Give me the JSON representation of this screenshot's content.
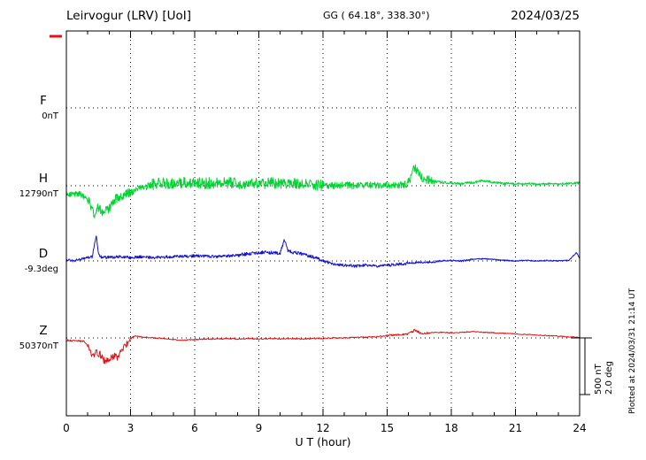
{
  "header": {
    "title": "Leirvogur (LRV)  [UoI]",
    "coords": "GG ( 64.18°, 338.30°)",
    "date": "2024/03/25"
  },
  "side": {
    "plotted_at": "Plotted at 2024/03/31 21:14 UT"
  },
  "chart_data": {
    "type": "line",
    "title": "Leirvogur (LRV) [UoI] magnetogram",
    "xlabel": "U T (hour)",
    "xlim": [
      0,
      24
    ],
    "x_ticks": [
      0,
      3,
      6,
      9,
      12,
      15,
      18,
      21,
      24
    ],
    "grid": "dotted vertical at 3h intervals, dotted horizontal at each trace baseline",
    "scale_bar": {
      "nT": "500 nT",
      "deg": "2.0 deg"
    },
    "series": [
      {
        "name": "F",
        "color": "#ffa500",
        "unit": "nT",
        "baseline_label": "0nT",
        "baseline_value": 0,
        "points": [],
        "noise": []
      },
      {
        "name": "H",
        "color": "#00d432",
        "unit": "nT",
        "baseline_label": "12790nT",
        "baseline_value": 12790,
        "points": [
          [
            0,
            -60
          ],
          [
            0.3,
            -80
          ],
          [
            0.6,
            -70
          ],
          [
            0.9,
            -100
          ],
          [
            1.1,
            -150
          ],
          [
            1.3,
            -260
          ],
          [
            1.5,
            -180
          ],
          [
            1.7,
            -230
          ],
          [
            2,
            -210
          ],
          [
            2.3,
            -120
          ],
          [
            2.6,
            -90
          ],
          [
            3,
            -60
          ],
          [
            3.3,
            -30
          ],
          [
            3.6,
            -20
          ],
          [
            4,
            10
          ],
          [
            4.5,
            25
          ],
          [
            5,
            20
          ],
          [
            5.5,
            30
          ],
          [
            6,
            25
          ],
          [
            6.5,
            20
          ],
          [
            7,
            30
          ],
          [
            7.5,
            25
          ],
          [
            8,
            20
          ],
          [
            8.5,
            25
          ],
          [
            9,
            20
          ],
          [
            9.5,
            25
          ],
          [
            10,
            20
          ],
          [
            10.5,
            15
          ],
          [
            11,
            20
          ],
          [
            11.5,
            10
          ],
          [
            12,
            5
          ],
          [
            12.5,
            0
          ],
          [
            13,
            5
          ],
          [
            13.5,
            0
          ],
          [
            14,
            5
          ],
          [
            14.5,
            0
          ],
          [
            15,
            10
          ],
          [
            15.5,
            5
          ],
          [
            16,
            30
          ],
          [
            16.3,
            170
          ],
          [
            16.5,
            90
          ],
          [
            16.8,
            60
          ],
          [
            17,
            50
          ],
          [
            17.5,
            30
          ],
          [
            18,
            25
          ],
          [
            18.5,
            20
          ],
          [
            19,
            30
          ],
          [
            19.5,
            45
          ],
          [
            20,
            30
          ],
          [
            20.5,
            20
          ],
          [
            21,
            15
          ],
          [
            21.5,
            20
          ],
          [
            22,
            15
          ],
          [
            22.5,
            20
          ],
          [
            23,
            15
          ],
          [
            23.5,
            20
          ],
          [
            24,
            25
          ]
        ],
        "noise": [
          [
            0,
            1,
            25
          ],
          [
            1,
            3,
            45
          ],
          [
            3,
            4,
            30
          ],
          [
            4,
            12,
            50
          ],
          [
            12,
            15.5,
            30
          ],
          [
            15.5,
            17.2,
            40
          ],
          [
            17.2,
            19.5,
            12
          ],
          [
            19.5,
            24,
            10
          ]
        ]
      },
      {
        "name": "D",
        "color": "#1414cd",
        "unit": "deg",
        "baseline_label": "-9.3deg",
        "baseline_value": -9.3,
        "points": [
          [
            0,
            0.05
          ],
          [
            0.3,
            0
          ],
          [
            0.6,
            0.05
          ],
          [
            0.9,
            0.1
          ],
          [
            1.2,
            0.15
          ],
          [
            1.4,
            0.85
          ],
          [
            1.5,
            0.3
          ],
          [
            1.6,
            0.15
          ],
          [
            2,
            0.12
          ],
          [
            2.5,
            0.15
          ],
          [
            3,
            0.12
          ],
          [
            3.5,
            0.15
          ],
          [
            4,
            0.12
          ],
          [
            5,
            0.15
          ],
          [
            6,
            0.18
          ],
          [
            7,
            0.15
          ],
          [
            8,
            0.2
          ],
          [
            8.5,
            0.25
          ],
          [
            9,
            0.3
          ],
          [
            9.5,
            0.3
          ],
          [
            10,
            0.28
          ],
          [
            10.2,
            0.75
          ],
          [
            10.35,
            0.35
          ],
          [
            10.6,
            0.3
          ],
          [
            11,
            0.25
          ],
          [
            11.5,
            0.15
          ],
          [
            12,
            0
          ],
          [
            12.5,
            -0.12
          ],
          [
            13,
            -0.15
          ],
          [
            13.5,
            -0.18
          ],
          [
            14,
            -0.15
          ],
          [
            14.5,
            -0.18
          ],
          [
            15,
            -0.15
          ],
          [
            15.5,
            -0.12
          ],
          [
            16,
            -0.08
          ],
          [
            16.5,
            -0.05
          ],
          [
            17,
            -0.05
          ],
          [
            17.5,
            0
          ],
          [
            18,
            0.02
          ],
          [
            18.5,
            0
          ],
          [
            19,
            0.05
          ],
          [
            19.5,
            0.08
          ],
          [
            20,
            0.05
          ],
          [
            20.5,
            0.02
          ],
          [
            21,
            0
          ],
          [
            21.5,
            0.02
          ],
          [
            22,
            0
          ],
          [
            22.5,
            0.02
          ],
          [
            23,
            0
          ],
          [
            23.5,
            0.02
          ],
          [
            23.85,
            0.3
          ],
          [
            24,
            0.1
          ]
        ],
        "noise": [
          [
            0,
            1.2,
            0.04
          ],
          [
            1.2,
            2,
            0.06
          ],
          [
            2,
            8,
            0.05
          ],
          [
            8,
            12,
            0.06
          ],
          [
            12,
            16,
            0.05
          ],
          [
            16,
            19,
            0.03
          ],
          [
            19,
            24,
            0.02
          ]
        ]
      },
      {
        "name": "Z",
        "color": "#e01414",
        "unit": "nT",
        "baseline_label": "50370nT",
        "baseline_value": 50370,
        "points": [
          [
            0,
            -20
          ],
          [
            0.5,
            -25
          ],
          [
            0.8,
            -30
          ],
          [
            1,
            -60
          ],
          [
            1.2,
            -170
          ],
          [
            1.4,
            -120
          ],
          [
            1.6,
            -150
          ],
          [
            1.8,
            -210
          ],
          [
            2,
            -190
          ],
          [
            2.2,
            -160
          ],
          [
            2.4,
            -170
          ],
          [
            2.6,
            -100
          ],
          [
            2.8,
            -60
          ],
          [
            3,
            -10
          ],
          [
            3.2,
            20
          ],
          [
            3.5,
            10
          ],
          [
            4,
            0
          ],
          [
            4.5,
            -5
          ],
          [
            5,
            -15
          ],
          [
            5.5,
            -20
          ],
          [
            6,
            -15
          ],
          [
            6.5,
            -10
          ],
          [
            7,
            -10
          ],
          [
            7.5,
            -5
          ],
          [
            8,
            -10
          ],
          [
            8.5,
            -5
          ],
          [
            9,
            -10
          ],
          [
            9.5,
            -5
          ],
          [
            10,
            -10
          ],
          [
            10.5,
            -5
          ],
          [
            11,
            -10
          ],
          [
            11.5,
            -5
          ],
          [
            12,
            -5
          ],
          [
            12.5,
            0
          ],
          [
            13,
            0
          ],
          [
            13.5,
            5
          ],
          [
            14,
            5
          ],
          [
            14.5,
            10
          ],
          [
            15,
            20
          ],
          [
            15.5,
            30
          ],
          [
            16,
            35
          ],
          [
            16.3,
            70
          ],
          [
            16.6,
            40
          ],
          [
            17,
            45
          ],
          [
            17.5,
            50
          ],
          [
            18,
            45
          ],
          [
            18.5,
            50
          ],
          [
            19,
            55
          ],
          [
            19.5,
            50
          ],
          [
            20,
            45
          ],
          [
            20.5,
            40
          ],
          [
            21,
            35
          ],
          [
            21.5,
            30
          ],
          [
            22,
            25
          ],
          [
            22.5,
            20
          ],
          [
            23,
            15
          ],
          [
            23.5,
            10
          ],
          [
            24,
            5
          ]
        ],
        "noise": [
          [
            0,
            1,
            8
          ],
          [
            1,
            3,
            30
          ],
          [
            3,
            15,
            5
          ],
          [
            15,
            17,
            10
          ],
          [
            17,
            24,
            4
          ]
        ]
      }
    ]
  }
}
